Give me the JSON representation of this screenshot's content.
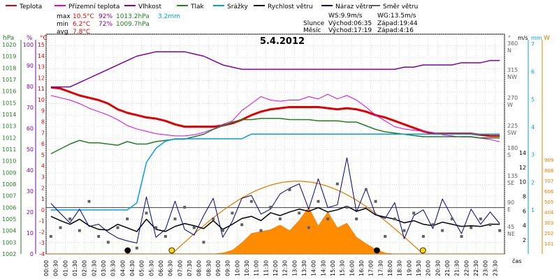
{
  "chart_data": {
    "type": "line",
    "title": "5.4.2012",
    "xlabel": "čas",
    "legend": [
      {
        "name": "Teplota",
        "color": "#e00000"
      },
      {
        "name": "Přízemní teplota",
        "color": "#e000e0"
      },
      {
        "name": "Vlhkost",
        "color": "#8000a0"
      },
      {
        "name": "Tlak",
        "color": "#208020"
      },
      {
        "name": "Srážky",
        "color": "#00a0e0"
      },
      {
        "name": "Rychlost větru",
        "color": "#000000"
      },
      {
        "name": "Náraz větru",
        "color": "#000080"
      },
      {
        "name": "Směr větru",
        "color": "#606060"
      }
    ],
    "stats": {
      "max": {
        "label": "max",
        "temp": "10.5°C",
        "hum": "92%",
        "press": "1013.2hPa",
        "rain": "3.2mm"
      },
      "min": {
        "label": "min",
        "temp": "6.2°C",
        "hum": "72%",
        "press": "1009.7hPa"
      },
      "avg": {
        "label": "avg",
        "temp": "7.8°C"
      }
    },
    "wind_info": {
      "ws": "WS:9.9m/s",
      "wg": "WG:13.5m/s"
    },
    "sun": {
      "label": "Slunce",
      "rise": "Východ:06:35",
      "set": "Západ:19:44"
    },
    "moon": {
      "label": "Měsíc",
      "rise": "Východ:17:19",
      "set": "Západ:4:16"
    },
    "x_ticks": [
      "00:00",
      "00:30",
      "01:00",
      "01:30",
      "02:00",
      "02:30",
      "03:00",
      "03:30",
      "04:00",
      "04:30",
      "05:00",
      "05:30",
      "06:00",
      "06:30",
      "07:00",
      "07:30",
      "08:00",
      "08:30",
      "09:00",
      "09:30",
      "10:00",
      "10:30",
      "11:00",
      "11:30",
      "12:00",
      "12:30",
      "13:00",
      "13:30",
      "14:00",
      "14:30",
      "15:00",
      "15:30",
      "16:00",
      "16:30",
      "17:00",
      "17:30",
      "18:00",
      "18:30",
      "19:00",
      "19:30",
      "20:00",
      "20:30",
      "21:00",
      "21:30",
      "22:00",
      "22:30",
      "23:00",
      "23:30"
    ],
    "axes": {
      "hpa": {
        "label": "hPa",
        "color": "#208020",
        "ticks": [
          "1020",
          "1019",
          "1018",
          "1017",
          "1016",
          "1015",
          "1014",
          "1013",
          "1012",
          "1011",
          "1010",
          "1009",
          "1008",
          "1007",
          "1006",
          "1005",
          "1004",
          "1003",
          "1002"
        ],
        "range": [
          1002,
          1020
        ]
      },
      "pct": {
        "label": "%",
        "color": "#8000a0",
        "ticks": [
          "100",
          "90",
          "80",
          "70",
          "60",
          "50",
          "40",
          "30",
          "20",
          "10",
          "0"
        ],
        "range": [
          0,
          100
        ]
      },
      "temp": {
        "label": "°C",
        "color": "#e00000",
        "ticks": [
          "15",
          "14",
          "13",
          "12",
          "11",
          "10",
          "9",
          "8",
          "7",
          "6",
          "5",
          "4",
          "3",
          "2",
          "1",
          "0",
          "-1",
          "-2",
          "-3",
          "-4"
        ],
        "range": [
          -4,
          15
        ]
      },
      "dir": {
        "label": "°",
        "color": "#606060",
        "ticks": [
          "360",
          "N",
          "315",
          "NW",
          "270",
          "W",
          "225",
          "SW",
          "180",
          "S",
          "135",
          "SE",
          "90",
          "E",
          "45",
          "NE"
        ]
      },
      "mm": {
        "label": "mm",
        "color": "#00a0e0",
        "ticks": [
          "7",
          "6",
          "5",
          "4",
          "3",
          "2",
          "1"
        ],
        "range": [
          0,
          7
        ]
      },
      "ms": {
        "label": "m/s",
        "color": "#000000",
        "ticks": [
          "14",
          "12",
          "10",
          "8",
          "6",
          "4",
          "2"
        ],
        "range": [
          0,
          14
        ]
      },
      "w": {
        "label": "W",
        "color": "#e08000",
        "ticks": [
          "909",
          "808",
          "707",
          "606",
          "505",
          "404",
          "303",
          "202",
          "101"
        ],
        "range": [
          0,
          1010
        ]
      }
    },
    "series": [
      {
        "name": "Teplota",
        "unit": "°C",
        "values": [
          10.4,
          10.3,
          10,
          9.7,
          9.5,
          9.3,
          9,
          8.5,
          8.2,
          8,
          7.8,
          7.7,
          7.5,
          7.2,
          7,
          7,
          7,
          7,
          7.1,
          7.3,
          7.6,
          8,
          8.3,
          8.5,
          8.6,
          8.7,
          8.7,
          8.7,
          8.7,
          8.6,
          8.5,
          8.6,
          8.5,
          8.3,
          8,
          7.8,
          7.5,
          7.2,
          6.9,
          6.6,
          6.4,
          6.4,
          6.4,
          6.4,
          6.4,
          6.3,
          6.2,
          6.2
        ]
      },
      {
        "name": "Přízemní teplota",
        "unit": "°C",
        "values": [
          9.7,
          9.5,
          9.3,
          9,
          8.6,
          8.3,
          8,
          7.6,
          7.1,
          6.8,
          6.6,
          6.4,
          6.3,
          6.2,
          6.2,
          6.3,
          6.5,
          6.8,
          7.2,
          7.5,
          8.4,
          9,
          9.6,
          9.3,
          9.2,
          9.3,
          9.3,
          9.6,
          9.4,
          9.8,
          9.4,
          9.7,
          9.3,
          8.7,
          8,
          7.5,
          7,
          6.8,
          6.7,
          6.6,
          6.5,
          6.3,
          6.2,
          6.1,
          6.1,
          6,
          5.9,
          5.7
        ]
      },
      {
        "name": "Vlhkost",
        "unit": "%",
        "values": [
          76,
          76,
          76,
          78,
          80,
          82,
          84,
          86,
          88,
          90,
          91,
          92,
          92,
          92,
          92,
          91,
          90,
          88,
          86,
          85,
          84,
          84,
          84,
          84,
          84,
          84,
          84,
          84,
          84,
          84,
          84,
          84,
          84,
          84,
          84,
          84,
          84,
          85,
          85,
          86,
          86,
          86,
          86,
          87,
          87,
          87,
          88,
          88
        ]
      },
      {
        "name": "Tlak",
        "unit": "hPa",
        "values": [
          1010.2,
          1010.6,
          1011,
          1011.3,
          1011.1,
          1011.1,
          1011,
          1010.9,
          1011.2,
          1011,
          1011,
          1011.2,
          1011.3,
          1011.4,
          1011.4,
          1011.6,
          1011.8,
          1012.2,
          1012.5,
          1012.8,
          1013,
          1013,
          1013.1,
          1013.1,
          1013.1,
          1013,
          1013,
          1013,
          1012.9,
          1012.9,
          1012.9,
          1012.8,
          1012.8,
          1012.5,
          1012.2,
          1012,
          1011.9,
          1011.8,
          1011.7,
          1011.6,
          1011.6,
          1011.6,
          1011.6,
          1011.6,
          1011.6,
          1011.5,
          1011.5,
          1011.5
        ]
      },
      {
        "name": "Srážky",
        "unit": "mm",
        "values": [
          0,
          0,
          0,
          0,
          0,
          0,
          0,
          0,
          0,
          0.3,
          2,
          2.6,
          2.9,
          3,
          3,
          3,
          3,
          3,
          3,
          3,
          3,
          3.2,
          3.2,
          3.2,
          3.2,
          3.2,
          3.2,
          3.2,
          3.2,
          3.2,
          3.2,
          3.2,
          3.2,
          3.2,
          3.2,
          3.2,
          3.2,
          3.2,
          3.2,
          3.2,
          3.2,
          3.2,
          3.2,
          3.2,
          3.2,
          3.2,
          3.2,
          3.2
        ]
      },
      {
        "name": "Rychlost větru",
        "unit": "m/s",
        "values": [
          5.2,
          4.6,
          4.1,
          4.8,
          3.9,
          3.4,
          3.3,
          4.1,
          3.6,
          3.1,
          4.8,
          3.4,
          3.1,
          3.8,
          4.2,
          3.9,
          3.5,
          4.6,
          3.4,
          4.1,
          4.9,
          5.2,
          4.6,
          5.7,
          5.3,
          5.8,
          6.2,
          5.9,
          6.4,
          5.8,
          6.1,
          6.6,
          5.9,
          6.3,
          5.4,
          5.1,
          4.8,
          4.3,
          4.6,
          4.1,
          3.9,
          4.4,
          4.1,
          3.8,
          3.9,
          3.8,
          4.1,
          4.1
        ]
      },
      {
        "name": "Náraz větru",
        "unit": "m/s",
        "values": [
          7,
          5.6,
          4.3,
          6.2,
          3.8,
          4.1,
          3,
          2.2,
          1.8,
          1.5,
          7.9,
          2.3,
          3.4,
          7.3,
          3.4,
          2.6,
          5.3,
          7.7,
          2.3,
          4.5,
          7.7,
          8.1,
          5.5,
          6.2,
          8.3,
          9.1,
          9.7,
          6.2,
          10.4,
          6.4,
          6.8,
          13.3,
          5.8,
          9.1,
          5.4,
          4.9,
          7.1,
          2.1,
          5.3,
          6.1,
          3.5,
          7.6,
          5.1,
          2.8,
          6.2,
          4.1,
          5.8,
          4.2
        ]
      },
      {
        "name": "Směr větru",
        "unit": "°",
        "values": [
          30,
          45,
          60,
          40,
          90,
          30,
          20,
          45,
          60,
          10,
          70,
          45,
          30,
          60,
          80,
          45,
          20,
          60,
          40,
          70,
          50,
          90,
          40,
          80,
          60,
          110,
          70,
          45,
          90,
          60,
          120,
          80,
          60,
          110,
          90,
          30,
          60,
          40,
          70,
          30,
          50,
          40,
          60,
          30,
          45,
          60,
          50,
          40
        ]
      },
      {
        "name": "Solar",
        "unit": "W",
        "values": [
          0,
          0,
          0,
          0,
          0,
          0,
          0,
          0,
          0,
          0,
          0,
          0,
          0,
          0,
          0,
          0,
          0,
          0,
          10,
          40,
          120,
          220,
          240,
          260,
          310,
          250,
          360,
          500,
          300,
          450,
          280,
          330,
          180,
          110,
          50,
          10,
          0,
          0,
          0,
          0,
          0,
          0,
          0,
          0,
          0,
          0,
          0,
          0
        ]
      }
    ],
    "sun_curve": {
      "rise_hour": 6.58,
      "set_hour": 19.73,
      "peak_w": 780
    }
  }
}
